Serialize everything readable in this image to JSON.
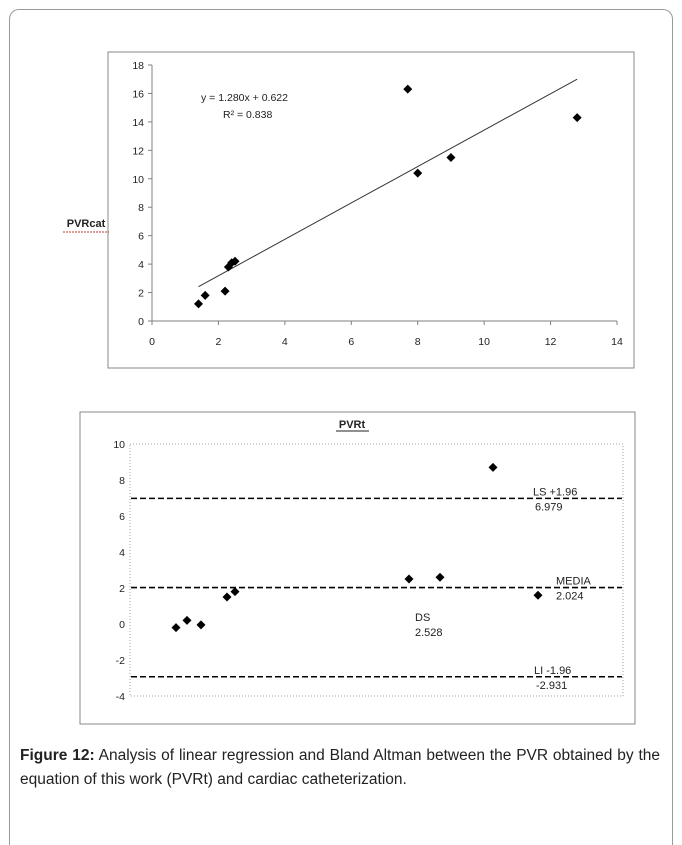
{
  "chart_data": [
    {
      "type": "scatter",
      "title": "",
      "xlabel": "",
      "ylabel": "PVRcat",
      "xlim": [
        0,
        14
      ],
      "ylim": [
        0,
        18
      ],
      "xticks": [
        0,
        2,
        4,
        6,
        8,
        10,
        12,
        14
      ],
      "yticks": [
        0,
        2,
        4,
        6,
        8,
        10,
        12,
        14,
        16,
        18
      ],
      "points": [
        {
          "x": 1.4,
          "y": 1.2
        },
        {
          "x": 1.6,
          "y": 1.8
        },
        {
          "x": 2.2,
          "y": 2.1
        },
        {
          "x": 2.3,
          "y": 3.8
        },
        {
          "x": 2.4,
          "y": 4.1
        },
        {
          "x": 2.5,
          "y": 4.2
        },
        {
          "x": 7.7,
          "y": 16.3
        },
        {
          "x": 8.0,
          "y": 10.4
        },
        {
          "x": 9.0,
          "y": 11.5
        },
        {
          "x": 12.8,
          "y": 14.3
        }
      ],
      "trendline": {
        "slope": 1.28,
        "intercept": 0.622,
        "x_range": [
          1.4,
          12.8
        ]
      },
      "annotations": [
        "y = 1.280x + 0.622",
        "R² = 0.838"
      ],
      "grid": false,
      "legend": "none"
    },
    {
      "type": "scatter",
      "title": "PVRt",
      "xlabel": "",
      "ylabel": "",
      "ylim": [
        -4,
        10
      ],
      "yticks": [
        -4,
        -2,
        0,
        2,
        4,
        6,
        8,
        10
      ],
      "points": [
        {
          "x": 1,
          "y": -0.2
        },
        {
          "x": 2,
          "y": 0.2
        },
        {
          "x": 3,
          "y": -0.05
        },
        {
          "x": 4,
          "y": 1.5
        },
        {
          "x": 5,
          "y": 1.8
        },
        {
          "x": 6,
          "y": 2.5
        },
        {
          "x": 7,
          "y": 2.6
        },
        {
          "x": 8,
          "y": 8.7
        },
        {
          "x": 9,
          "y": 1.6
        }
      ],
      "reference_lines": [
        {
          "value": 6.979,
          "label": "LS +1.96",
          "value_label": "6.979"
        },
        {
          "value": 2.024,
          "label": "MEDIA",
          "value_label": "2.024"
        },
        {
          "value": -2.931,
          "label": "LI -1.96",
          "value_label": "-2.931"
        }
      ],
      "annotations": [
        "DS",
        "2.528"
      ],
      "grid": false,
      "legend": "none"
    }
  ],
  "caption": {
    "label": "Figure 12:",
    "text": " Analysis of linear regression and Bland Altman between the PVR obtained by the equation of this work (PVRt) and cardiac catheterization."
  }
}
